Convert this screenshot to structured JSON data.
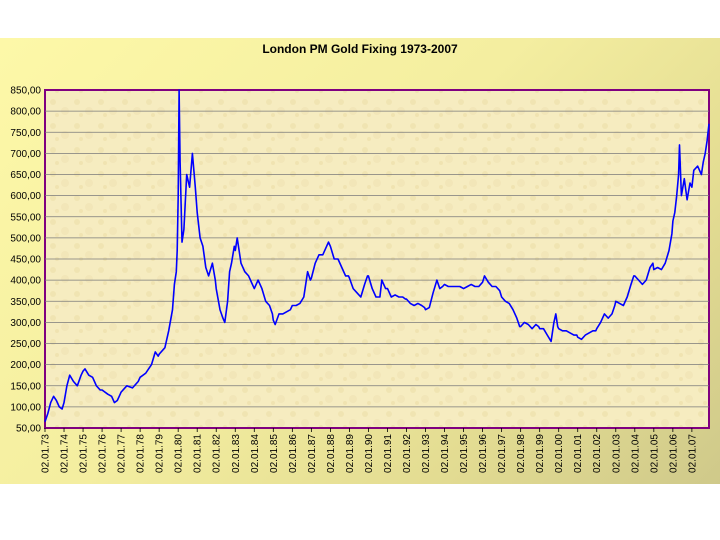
{
  "chart_data": {
    "type": "line",
    "title": "London PM Gold Fixing 1973-2007",
    "xlabel": "",
    "ylabel": "",
    "ylim": [
      50,
      850
    ],
    "y_ticks": [
      "50,00",
      "100,00",
      "150,00",
      "200,00",
      "250,00",
      "300,00",
      "350,00",
      "400,00",
      "450,00",
      "500,00",
      "550,00",
      "600,00",
      "650,00",
      "700,00",
      "750,00",
      "800,00",
      "850,00"
    ],
    "x_ticks": [
      "02.01.73",
      "02.01.74",
      "02.01.75",
      "02.01.76",
      "02.01.77",
      "02.01.78",
      "02.01.79",
      "02.01.80",
      "02.01.81",
      "02.01.82",
      "02.01.83",
      "02.01.84",
      "02.01.85",
      "02.01.86",
      "02.01.87",
      "02.01.88",
      "02.01.89",
      "02.01.90",
      "02.01.91",
      "02.01.92",
      "02.01.93",
      "02.01.94",
      "02.01.95",
      "02.01.96",
      "02.01.97",
      "02.01.98",
      "02.01.99",
      "02.01.00",
      "02.01.01",
      "02.01.02",
      "02.01.03",
      "02.01.04",
      "02.01.05",
      "02.01.06",
      "02.01.07"
    ],
    "grid": true,
    "line_color": "#0000ff",
    "plot_border_color": "#800080",
    "series": [
      {
        "values": [
          [
            1973.0,
            65
          ],
          [
            1973.15,
            85
          ],
          [
            1973.3,
            110
          ],
          [
            1973.45,
            125
          ],
          [
            1973.6,
            115
          ],
          [
            1973.75,
            100
          ],
          [
            1973.9,
            95
          ],
          [
            1974.0,
            110
          ],
          [
            1974.15,
            150
          ],
          [
            1974.3,
            175
          ],
          [
            1974.5,
            160
          ],
          [
            1974.7,
            150
          ],
          [
            1974.9,
            175
          ],
          [
            1975.0,
            185
          ],
          [
            1975.1,
            190
          ],
          [
            1975.3,
            175
          ],
          [
            1975.5,
            170
          ],
          [
            1975.7,
            150
          ],
          [
            1975.9,
            140
          ],
          [
            1976.0,
            140
          ],
          [
            1976.3,
            130
          ],
          [
            1976.5,
            125
          ],
          [
            1976.65,
            110
          ],
          [
            1976.8,
            115
          ],
          [
            1976.95,
            130
          ],
          [
            1977.0,
            135
          ],
          [
            1977.3,
            150
          ],
          [
            1977.6,
            145
          ],
          [
            1977.9,
            160
          ],
          [
            1978.0,
            170
          ],
          [
            1978.3,
            180
          ],
          [
            1978.6,
            200
          ],
          [
            1978.8,
            230
          ],
          [
            1978.95,
            220
          ],
          [
            1979.0,
            225
          ],
          [
            1979.3,
            240
          ],
          [
            1979.5,
            280
          ],
          [
            1979.7,
            330
          ],
          [
            1979.8,
            390
          ],
          [
            1979.9,
            420
          ],
          [
            1979.95,
            470
          ],
          [
            1980.0,
            600
          ],
          [
            1980.05,
            850
          ],
          [
            1980.1,
            680
          ],
          [
            1980.2,
            490
          ],
          [
            1980.3,
            520
          ],
          [
            1980.45,
            650
          ],
          [
            1980.6,
            620
          ],
          [
            1980.75,
            700
          ],
          [
            1980.9,
            620
          ],
          [
            1981.0,
            560
          ],
          [
            1981.15,
            500
          ],
          [
            1981.3,
            480
          ],
          [
            1981.45,
            430
          ],
          [
            1981.6,
            410
          ],
          [
            1981.8,
            440
          ],
          [
            1981.95,
            400
          ],
          [
            1982.0,
            380
          ],
          [
            1982.2,
            330
          ],
          [
            1982.35,
            310
          ],
          [
            1982.45,
            300
          ],
          [
            1982.6,
            350
          ],
          [
            1982.7,
            420
          ],
          [
            1982.8,
            440
          ],
          [
            1982.95,
            480
          ],
          [
            1983.0,
            470
          ],
          [
            1983.1,
            500
          ],
          [
            1983.3,
            440
          ],
          [
            1983.5,
            420
          ],
          [
            1983.7,
            410
          ],
          [
            1983.9,
            390
          ],
          [
            1984.0,
            380
          ],
          [
            1984.2,
            400
          ],
          [
            1984.4,
            380
          ],
          [
            1984.6,
            350
          ],
          [
            1984.8,
            340
          ],
          [
            1984.95,
            320
          ],
          [
            1985.0,
            305
          ],
          [
            1985.1,
            295
          ],
          [
            1985.3,
            320
          ],
          [
            1985.5,
            320
          ],
          [
            1985.7,
            325
          ],
          [
            1985.9,
            330
          ],
          [
            1986.0,
            340
          ],
          [
            1986.2,
            340
          ],
          [
            1986.4,
            345
          ],
          [
            1986.6,
            360
          ],
          [
            1986.8,
            420
          ],
          [
            1986.95,
            400
          ],
          [
            1987.0,
            405
          ],
          [
            1987.2,
            440
          ],
          [
            1987.4,
            460
          ],
          [
            1987.6,
            460
          ],
          [
            1987.8,
            480
          ],
          [
            1987.9,
            490
          ],
          [
            1988.0,
            480
          ],
          [
            1988.2,
            450
          ],
          [
            1988.4,
            450
          ],
          [
            1988.6,
            430
          ],
          [
            1988.8,
            410
          ],
          [
            1988.95,
            410
          ],
          [
            1989.0,
            405
          ],
          [
            1989.2,
            380
          ],
          [
            1989.4,
            370
          ],
          [
            1989.6,
            360
          ],
          [
            1989.8,
            390
          ],
          [
            1989.95,
            410
          ],
          [
            1990.0,
            410
          ],
          [
            1990.2,
            380
          ],
          [
            1990.4,
            360
          ],
          [
            1990.6,
            360
          ],
          [
            1990.7,
            400
          ],
          [
            1990.9,
            380
          ],
          [
            1991.0,
            380
          ],
          [
            1991.2,
            360
          ],
          [
            1991.4,
            365
          ],
          [
            1991.6,
            360
          ],
          [
            1991.8,
            360
          ],
          [
            1991.95,
            355
          ],
          [
            1992.0,
            355
          ],
          [
            1992.2,
            345
          ],
          [
            1992.4,
            340
          ],
          [
            1992.6,
            345
          ],
          [
            1992.8,
            340
          ],
          [
            1992.95,
            335
          ],
          [
            1993.0,
            330
          ],
          [
            1993.2,
            335
          ],
          [
            1993.4,
            370
          ],
          [
            1993.6,
            400
          ],
          [
            1993.75,
            380
          ],
          [
            1993.9,
            385
          ],
          [
            1994.0,
            390
          ],
          [
            1994.2,
            385
          ],
          [
            1994.4,
            385
          ],
          [
            1994.6,
            385
          ],
          [
            1994.8,
            385
          ],
          [
            1995.0,
            380
          ],
          [
            1995.2,
            385
          ],
          [
            1995.4,
            390
          ],
          [
            1995.6,
            385
          ],
          [
            1995.8,
            385
          ],
          [
            1996.0,
            395
          ],
          [
            1996.1,
            410
          ],
          [
            1996.3,
            395
          ],
          [
            1996.5,
            385
          ],
          [
            1996.7,
            385
          ],
          [
            1996.9,
            375
          ],
          [
            1997.0,
            360
          ],
          [
            1997.2,
            350
          ],
          [
            1997.4,
            345
          ],
          [
            1997.6,
            330
          ],
          [
            1997.8,
            310
          ],
          [
            1997.95,
            290
          ],
          [
            1998.0,
            290
          ],
          [
            1998.2,
            300
          ],
          [
            1998.4,
            295
          ],
          [
            1998.6,
            285
          ],
          [
            1998.8,
            295
          ],
          [
            1998.95,
            290
          ],
          [
            1999.0,
            285
          ],
          [
            1999.2,
            285
          ],
          [
            1999.4,
            270
          ],
          [
            1999.6,
            255
          ],
          [
            1999.75,
            300
          ],
          [
            1999.85,
            320
          ],
          [
            1999.95,
            290
          ],
          [
            2000.0,
            285
          ],
          [
            2000.2,
            280
          ],
          [
            2000.4,
            280
          ],
          [
            2000.6,
            275
          ],
          [
            2000.8,
            270
          ],
          [
            2000.95,
            270
          ],
          [
            2001.0,
            265
          ],
          [
            2001.2,
            260
          ],
          [
            2001.4,
            270
          ],
          [
            2001.6,
            275
          ],
          [
            2001.8,
            280
          ],
          [
            2001.95,
            280
          ],
          [
            2002.0,
            285
          ],
          [
            2002.2,
            300
          ],
          [
            2002.4,
            320
          ],
          [
            2002.6,
            310
          ],
          [
            2002.8,
            320
          ],
          [
            2002.95,
            340
          ],
          [
            2003.0,
            350
          ],
          [
            2003.2,
            345
          ],
          [
            2003.4,
            340
          ],
          [
            2003.6,
            360
          ],
          [
            2003.8,
            390
          ],
          [
            2003.95,
            410
          ],
          [
            2004.0,
            410
          ],
          [
            2004.2,
            400
          ],
          [
            2004.4,
            390
          ],
          [
            2004.6,
            400
          ],
          [
            2004.8,
            430
          ],
          [
            2004.95,
            440
          ],
          [
            2005.0,
            425
          ],
          [
            2005.2,
            430
          ],
          [
            2005.4,
            425
          ],
          [
            2005.6,
            440
          ],
          [
            2005.8,
            470
          ],
          [
            2005.95,
            510
          ],
          [
            2006.0,
            540
          ],
          [
            2006.1,
            560
          ],
          [
            2006.2,
            600
          ],
          [
            2006.3,
            650
          ],
          [
            2006.35,
            720
          ],
          [
            2006.45,
            600
          ],
          [
            2006.6,
            640
          ],
          [
            2006.75,
            590
          ],
          [
            2006.9,
            630
          ],
          [
            2007.0,
            620
          ],
          [
            2007.1,
            660
          ],
          [
            2007.3,
            670
          ],
          [
            2007.5,
            650
          ],
          [
            2007.6,
            680
          ],
          [
            2007.7,
            700
          ],
          [
            2007.8,
            730
          ],
          [
            2007.9,
            770
          ]
        ]
      }
    ]
  }
}
